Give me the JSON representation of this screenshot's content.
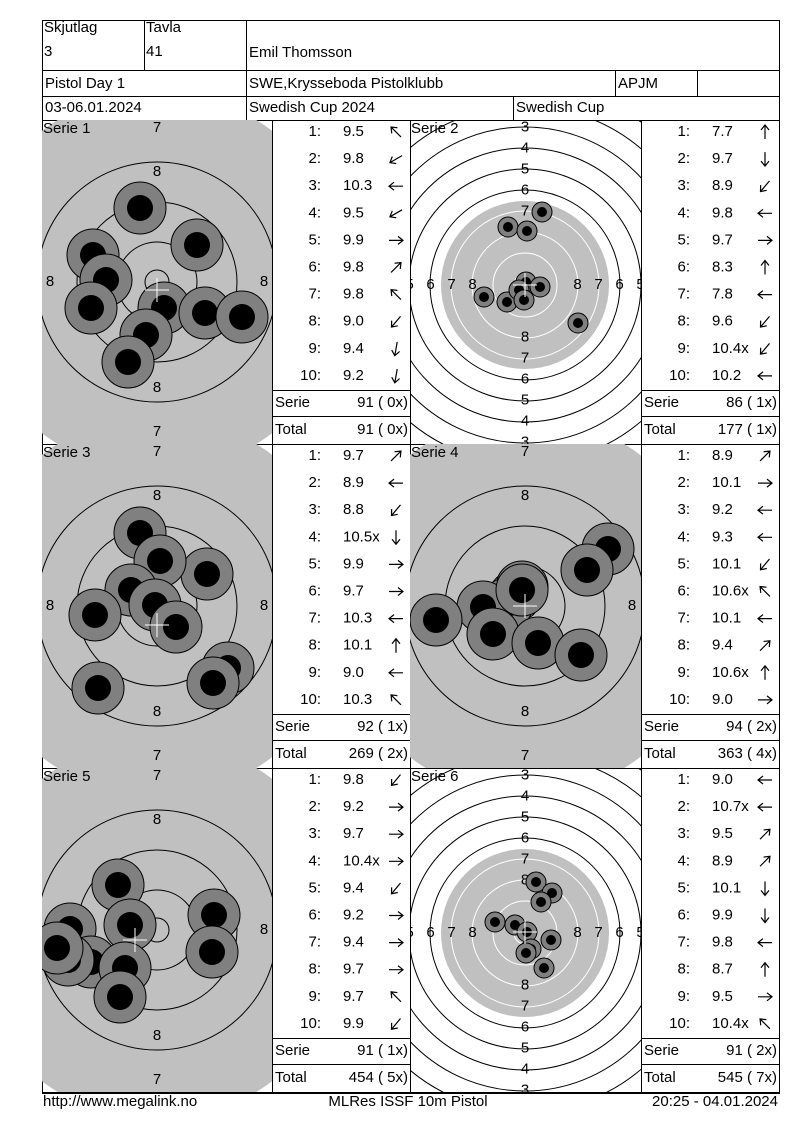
{
  "header": {
    "skjutlag_label": "Skjutlag",
    "skjutlag": "3",
    "tavla_label": "Tavla",
    "tavla": "41",
    "name": "Emil Thomsson",
    "event": "Pistol Day 1",
    "club": "SWE,Krysseboda Pistolklubb",
    "class": "APJM",
    "date": "03-06.01.2024",
    "competition": "Swedish Cup 2024",
    "cup": "Swedish Cup"
  },
  "series": [
    {
      "title": "Serie 1",
      "target_labels": [
        "7",
        "8",
        "8",
        "8",
        "8",
        "7"
      ],
      "shots": [
        {
          "n": "1:",
          "v": "9.5"
        },
        {
          "n": "2:",
          "v": "9.8"
        },
        {
          "n": "3:",
          "v": "10.3"
        },
        {
          "n": "4:",
          "v": "9.5"
        },
        {
          "n": "5:",
          "v": "9.9"
        },
        {
          "n": "6:",
          "v": "9.8"
        },
        {
          "n": "7:",
          "v": "9.8"
        },
        {
          "n": "8:",
          "v": "9.0"
        },
        {
          "n": "9:",
          "v": "9.4"
        },
        {
          "n": "10:",
          "v": "9.2"
        }
      ],
      "serie_label": "Serie",
      "serie": "91 ( 0x)",
      "total_label": "Total",
      "total": "91 ( 0x)"
    },
    {
      "title": "Serie 2",
      "target_labels": [
        "3",
        "4",
        "5",
        "6",
        "7",
        "8",
        "5",
        "6",
        "7",
        "8",
        "8",
        "7",
        "6",
        "5",
        "8",
        "7",
        "6",
        "5",
        "4",
        "3"
      ],
      "shots": [
        {
          "n": "1:",
          "v": "7.7"
        },
        {
          "n": "2:",
          "v": "9.7"
        },
        {
          "n": "3:",
          "v": "8.9"
        },
        {
          "n": "4:",
          "v": "9.8"
        },
        {
          "n": "5:",
          "v": "9.7"
        },
        {
          "n": "6:",
          "v": "8.3"
        },
        {
          "n": "7:",
          "v": "7.8"
        },
        {
          "n": "8:",
          "v": "9.6"
        },
        {
          "n": "9:",
          "v": "10.4x"
        },
        {
          "n": "10:",
          "v": "10.2"
        }
      ],
      "serie_label": "Serie",
      "serie": "86 ( 1x)",
      "total_label": "Total",
      "total": "177 ( 1x)"
    },
    {
      "title": "Serie 3",
      "target_labels": [
        "7",
        "8",
        "8",
        "8",
        "8",
        "7"
      ],
      "shots": [
        {
          "n": "1:",
          "v": "9.7"
        },
        {
          "n": "2:",
          "v": "8.9"
        },
        {
          "n": "3:",
          "v": "8.8"
        },
        {
          "n": "4:",
          "v": "10.5x"
        },
        {
          "n": "5:",
          "v": "9.9"
        },
        {
          "n": "6:",
          "v": "9.7"
        },
        {
          "n": "7:",
          "v": "10.3"
        },
        {
          "n": "8:",
          "v": "10.1"
        },
        {
          "n": "9:",
          "v": "9.0"
        },
        {
          "n": "10:",
          "v": "10.3"
        }
      ],
      "serie_label": "Serie",
      "serie": "92 ( 1x)",
      "total_label": "Total",
      "total": "269 ( 2x)"
    },
    {
      "title": "Serie 4",
      "target_labels": [
        "7",
        "8",
        "8",
        "8",
        "7"
      ],
      "shots": [
        {
          "n": "1:",
          "v": "8.9"
        },
        {
          "n": "2:",
          "v": "10.1"
        },
        {
          "n": "3:",
          "v": "9.2"
        },
        {
          "n": "4:",
          "v": "9.3"
        },
        {
          "n": "5:",
          "v": "10.1"
        },
        {
          "n": "6:",
          "v": "10.6x"
        },
        {
          "n": "7:",
          "v": "10.1"
        },
        {
          "n": "8:",
          "v": "9.4"
        },
        {
          "n": "9:",
          "v": "10.6x"
        },
        {
          "n": "10:",
          "v": "9.0"
        }
      ],
      "serie_label": "Serie",
      "serie": "94 ( 2x)",
      "total_label": "Total",
      "total": "363 ( 4x)"
    },
    {
      "title": "Serie 5",
      "target_labels": [
        "7",
        "8",
        "8",
        "8",
        "7"
      ],
      "shots": [
        {
          "n": "1:",
          "v": "9.8"
        },
        {
          "n": "2:",
          "v": "9.2"
        },
        {
          "n": "3:",
          "v": "9.7"
        },
        {
          "n": "4:",
          "v": "10.4x"
        },
        {
          "n": "5:",
          "v": "9.4"
        },
        {
          "n": "6:",
          "v": "9.2"
        },
        {
          "n": "7:",
          "v": "9.4"
        },
        {
          "n": "8:",
          "v": "9.7"
        },
        {
          "n": "9:",
          "v": "9.7"
        },
        {
          "n": "10:",
          "v": "9.9"
        }
      ],
      "serie_label": "Serie",
      "serie": "91 ( 1x)",
      "total_label": "Total",
      "total": "454 ( 5x)"
    },
    {
      "title": "Serie 6",
      "target_labels": [
        "3",
        "4",
        "5",
        "6",
        "7",
        "8",
        "5",
        "6",
        "7",
        "8",
        "8",
        "7",
        "6",
        "5",
        "8",
        "7",
        "6",
        "5",
        "4",
        "3"
      ],
      "shots": [
        {
          "n": "1:",
          "v": "9.0"
        },
        {
          "n": "2:",
          "v": "10.7x"
        },
        {
          "n": "3:",
          "v": "9.5"
        },
        {
          "n": "4:",
          "v": "8.9"
        },
        {
          "n": "5:",
          "v": "10.1"
        },
        {
          "n": "6:",
          "v": "9.9"
        },
        {
          "n": "7:",
          "v": "9.8"
        },
        {
          "n": "8:",
          "v": "8.7"
        },
        {
          "n": "9:",
          "v": "9.5"
        },
        {
          "n": "10:",
          "v": "10.4x"
        }
      ],
      "serie_label": "Serie",
      "serie": "91 ( 2x)",
      "total_label": "Total",
      "total": "545 ( 7x)"
    }
  ],
  "footer": {
    "left": "http://www.megalink.no",
    "center": "MLRes ISSF 10m Pistol",
    "right": "20:25 - 04.01.2024"
  }
}
